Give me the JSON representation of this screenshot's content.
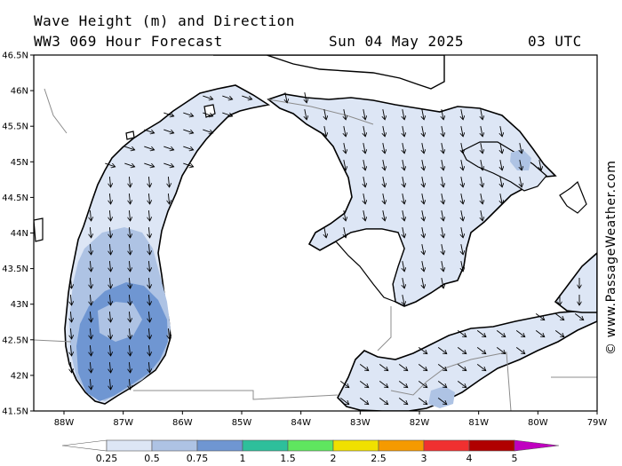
{
  "header": {
    "line1": "Wave Height (m) and Direction",
    "line2": "WW3 069 Hour Forecast",
    "date": "Sun 04 May 2025",
    "time": "03 UTC"
  },
  "credit": "© www.PassageWeather.com",
  "axes": {
    "lat_labels": [
      "46.5N",
      "46N",
      "45.5N",
      "45N",
      "44.5N",
      "44N",
      "43.5N",
      "43N",
      "42.5N",
      "42N",
      "41.5N"
    ],
    "lon_labels": [
      "88W",
      "87W",
      "86W",
      "85W",
      "84W",
      "83W",
      "82W",
      "81W",
      "80W",
      "79W"
    ],
    "lat_range": [
      41.5,
      46.5
    ],
    "lon_range": [
      -88.5,
      -79
    ]
  },
  "legend": {
    "labels": [
      "0.25",
      "0.5",
      "0.75",
      "1",
      "1.5",
      "2",
      "2.5",
      "3",
      "4",
      "5"
    ],
    "colors": [
      "#ffffff",
      "#dde6f5",
      "#aec3e4",
      "#6f96d2",
      "#2ebf9b",
      "#5fe65f",
      "#f0e000",
      "#f59a00",
      "#f03030",
      "#b00000",
      "#c000c0"
    ]
  },
  "colors": {
    "land": "#ffffff",
    "wave_low": "#dde6f5",
    "wave_mid": "#aec3e4",
    "wave_high": "#6f96d2",
    "coast": "#000000",
    "border": "#8c8c8c"
  }
}
